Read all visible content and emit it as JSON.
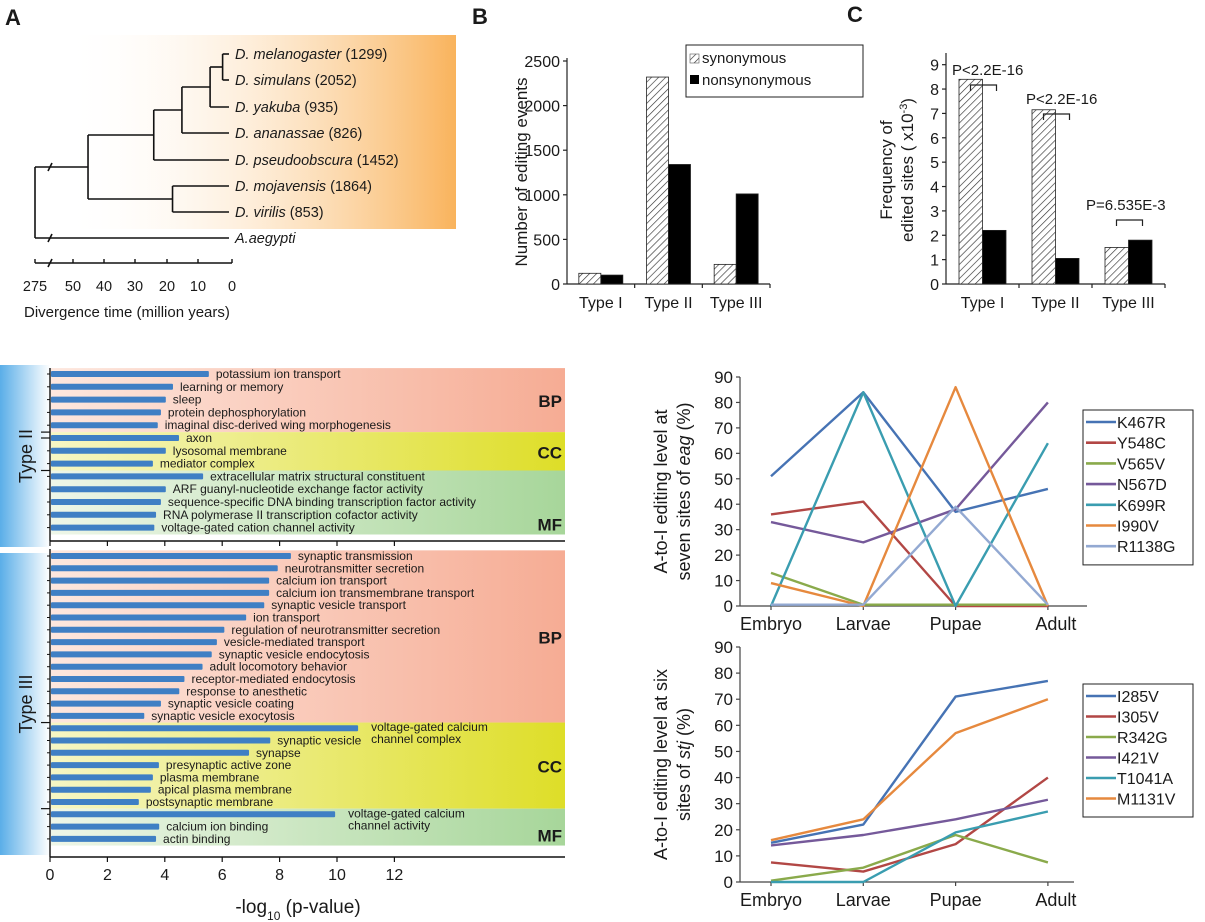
{
  "panels": {
    "A": "A",
    "B": "B",
    "C": "C"
  },
  "chart_data": [
    {
      "id": "A",
      "type": "tree",
      "title": "",
      "xlabel": "Divergence time (million years)",
      "x_ticks": [
        "275",
        "50",
        "40",
        "30",
        "20",
        "10",
        "0"
      ],
      "axis_break": true,
      "species": [
        {
          "name": "D. melanogaster",
          "count": "(1299)"
        },
        {
          "name": "D. simulans",
          "count": "(2052)"
        },
        {
          "name": "D. yakuba",
          "count": "(935)"
        },
        {
          "name": "D. ananassae",
          "count": "(826)"
        },
        {
          "name": "D. pseudoobscura",
          "count": "(1452)"
        },
        {
          "name": "D. mojavensis",
          "count": "(1864)"
        },
        {
          "name": "D. virilis",
          "count": "(853)"
        }
      ],
      "outgroup": "A.aegypti",
      "highlight_color": "#f9b35c",
      "node_times_mya": {
        "mel_sim": 3,
        "mel_yak": 7,
        "mel_ana": 16,
        "mel_pse": 25,
        "moj_vir": 19,
        "drosophila_root": 46,
        "root": 275
      }
    },
    {
      "id": "B",
      "type": "bar",
      "title": "",
      "xlabel": "",
      "ylabel": "Number of editing events",
      "categories": [
        "Type I",
        "Type II",
        "Type III"
      ],
      "y_ticks": [
        "0",
        "500",
        "1000",
        "1500",
        "2000",
        "2500"
      ],
      "ylim": [
        0,
        2500
      ],
      "legend": [
        "synonymous",
        "nonsynonymous"
      ],
      "legend_position": "top-right",
      "series": [
        {
          "name": "synonymous",
          "pattern": "hatched",
          "values": [
            120,
            2320,
            220
          ]
        },
        {
          "name": "nonsynonymous",
          "pattern": "solid-black",
          "values": [
            100,
            1340,
            1010
          ]
        }
      ]
    },
    {
      "id": "C",
      "type": "bar",
      "title": "",
      "xlabel": "",
      "ylabel_line1": "Frequency of",
      "ylabel_line2": "edited sites ( x10",
      "ylabel_sup": "-3",
      "ylabel_end": ")",
      "categories": [
        "Type I",
        "Type II",
        "Type III"
      ],
      "y_ticks": [
        "0",
        "1",
        "2",
        "3",
        "4",
        "5",
        "6",
        "7",
        "8",
        "9"
      ],
      "ylim": [
        0,
        9.5
      ],
      "series": [
        {
          "name": "synonymous",
          "pattern": "hatched",
          "values": [
            8.4,
            7.15,
            1.5
          ]
        },
        {
          "name": "nonsynonymous",
          "pattern": "solid-black",
          "values": [
            2.2,
            1.05,
            1.8
          ]
        }
      ],
      "annotations": [
        "P<2.2E-16",
        "P<2.2E-16",
        "P=6.535E-3"
      ]
    },
    {
      "id": "D",
      "type": "bar",
      "orientation": "horizontal",
      "xlabel_pre": "-log",
      "xlabel_sub": "10",
      "xlabel_post": " (p-value)",
      "x_ticks": [
        "0",
        "2",
        "4",
        "6",
        "8",
        "10",
        "12"
      ],
      "xlim": [
        0,
        14.1
      ],
      "bar_color": "#3f7fc4",
      "groups": [
        {
          "name": "Type II",
          "categories": [
            {
              "name": "BP",
              "color_from": "#fde7de",
              "color_to": "#f6ac94",
              "terms": [
                {
                  "label": "potassium ion transport",
                  "value": 5.5
                },
                {
                  "label": "learning or memory",
                  "value": 4.25
                },
                {
                  "label": "sleep",
                  "value": 4.0
                },
                {
                  "label": "protein dephosphorylation",
                  "value": 3.83
                },
                {
                  "label": "imaginal disc-derived wing morphogenesis",
                  "value": 3.72
                }
              ]
            },
            {
              "name": "CC",
              "color_from": "#f6f6c4",
              "color_to": "#dede28",
              "terms": [
                {
                  "label": "axon",
                  "value": 4.46
                },
                {
                  "label": "lysosomal membrane",
                  "value": 4.0
                },
                {
                  "label": "mediator complex",
                  "value": 3.55
                }
              ]
            },
            {
              "name": "MF",
              "color_from": "#eef6e8",
              "color_to": "#a7d69a",
              "terms": [
                {
                  "label": "extracellular matrix structural constituent",
                  "value": 5.3
                },
                {
                  "label": "ARF guanyl-nucleotide exchange factor activity",
                  "value": 4.0
                },
                {
                  "label": "sequence-specific DNA binding transcription factor activity",
                  "value": 3.83
                },
                {
                  "label": "RNA polymerase II transcription cofactor activity",
                  "value": 3.66
                },
                {
                  "label": "voltage-gated cation channel activity",
                  "value": 3.6
                }
              ]
            }
          ]
        },
        {
          "name": "Type III",
          "categories": [
            {
              "name": "BP",
              "color_from": "#fde7de",
              "color_to": "#f6ac94",
              "terms": [
                {
                  "label": "synaptic transmission",
                  "value": 8.36
                },
                {
                  "label": "neurotransmitter secretion",
                  "value": 7.9
                },
                {
                  "label": "calcium ion transport",
                  "value": 7.6
                },
                {
                  "label": "calcium ion transmembrane transport",
                  "value": 7.6
                },
                {
                  "label": "synaptic vesicle transport",
                  "value": 7.43
                },
                {
                  "label": "ion transport",
                  "value": 6.8
                },
                {
                  "label": "regulation of neurotransmitter secretion",
                  "value": 6.04
                },
                {
                  "label": "vesicle-mediated transport",
                  "value": 5.78
                },
                {
                  "label": "synaptic vesicle endocytosis",
                  "value": 5.6
                },
                {
                  "label": "adult locomotory behavior",
                  "value": 5.28
                },
                {
                  "label": "receptor-mediated endocytosis",
                  "value": 4.65
                },
                {
                  "label": "response to anesthetic",
                  "value": 4.47
                },
                {
                  "label": "synaptic vesicle coating",
                  "value": 3.83
                },
                {
                  "label": "synaptic vesicle exocytosis",
                  "value": 3.25
                }
              ]
            },
            {
              "name": "CC",
              "color_from": "#f6f6c4",
              "color_to": "#dede28",
              "terms": [
                {
                  "label": "voltage-gated calcium channel complex",
                  "label_lines": [
                    "voltage-gated calcium",
                    "channel complex"
                  ],
                  "value": 10.7
                },
                {
                  "label": "synaptic vesicle",
                  "value": 7.64
                },
                {
                  "label": "synapse",
                  "value": 6.9
                },
                {
                  "label": "presynaptic active zone",
                  "value": 3.76
                },
                {
                  "label": "plasma membrane",
                  "value": 3.55
                },
                {
                  "label": "apical plasma membrane",
                  "value": 3.48
                },
                {
                  "label": "postsynaptic membrane",
                  "value": 3.06
                }
              ]
            },
            {
              "name": "MF",
              "color_from": "#eef6e8",
              "color_to": "#a7d69a",
              "terms": [
                {
                  "label": "voltage-gated calcium channel activity",
                  "label_lines": [
                    "voltage-gated calcium",
                    "channel activity"
                  ],
                  "value": 9.9
                },
                {
                  "label": "calcium ion binding",
                  "value": 3.77
                },
                {
                  "label": "actin binding",
                  "value": 3.66
                }
              ]
            }
          ]
        }
      ]
    },
    {
      "id": "E",
      "type": "line",
      "ylabel_line1": "A-to-I editing level at",
      "ylabel_line2_pre": "seven sites of ",
      "ylabel_line2_ital": "eag",
      "ylabel_line2_post": "  (%)",
      "x": [
        "Embryo",
        "Larvae",
        "Pupae",
        "Adult"
      ],
      "y_ticks": [
        "0",
        "10",
        "20",
        "30",
        "40",
        "50",
        "60",
        "70",
        "80",
        "90"
      ],
      "ylim": [
        0,
        90
      ],
      "legend_position": "right",
      "series": [
        {
          "name": "K467R",
          "color": "#4673b4",
          "values": [
            51,
            84,
            37,
            46
          ]
        },
        {
          "name": "Y548C",
          "color": "#b24745",
          "values": [
            36,
            41,
            0,
            0
          ]
        },
        {
          "name": "V565V",
          "color": "#8aaa4b",
          "values": [
            13,
            0.5,
            0.5,
            0.5
          ]
        },
        {
          "name": "N567D",
          "color": "#75599a",
          "values": [
            33,
            25,
            38,
            80
          ]
        },
        {
          "name": "K699R",
          "color": "#3a9db0",
          "values": [
            0,
            84,
            0,
            64
          ]
        },
        {
          "name": "I990V",
          "color": "#e6893e",
          "values": [
            9,
            0,
            86,
            0
          ]
        },
        {
          "name": "R1138G",
          "color": "#93a9d2",
          "values": [
            0.5,
            0.5,
            39,
            0.5
          ]
        }
      ]
    },
    {
      "id": "F",
      "type": "line",
      "ylabel_line1": "A-to-I editing level at six",
      "ylabel_line2_pre": "sites of ",
      "ylabel_line2_ital": "stj",
      "ylabel_line2_post": "  (%)",
      "x": [
        "Embryo",
        "Larvae",
        "Pupae",
        "Adult"
      ],
      "y_ticks": [
        "0",
        "10",
        "20",
        "30",
        "40",
        "50",
        "60",
        "70",
        "80",
        "90"
      ],
      "ylim": [
        0,
        90
      ],
      "legend_position": "right",
      "series": [
        {
          "name": "I285V",
          "color": "#4673b4",
          "values": [
            15,
            22,
            71,
            77
          ]
        },
        {
          "name": "I305V",
          "color": "#b24745",
          "values": [
            7.5,
            4,
            14.5,
            40
          ]
        },
        {
          "name": "R342G",
          "color": "#8aaa4b",
          "values": [
            0.5,
            5.5,
            18,
            7.5
          ]
        },
        {
          "name": "I421V",
          "color": "#75599a",
          "values": [
            14,
            18,
            24,
            31.5
          ]
        },
        {
          "name": "T1041A",
          "color": "#3a9db0",
          "values": [
            0,
            0,
            19,
            27
          ]
        },
        {
          "name": "M1131V",
          "color": "#e6893e",
          "values": [
            16,
            24,
            57,
            70
          ]
        }
      ]
    }
  ]
}
